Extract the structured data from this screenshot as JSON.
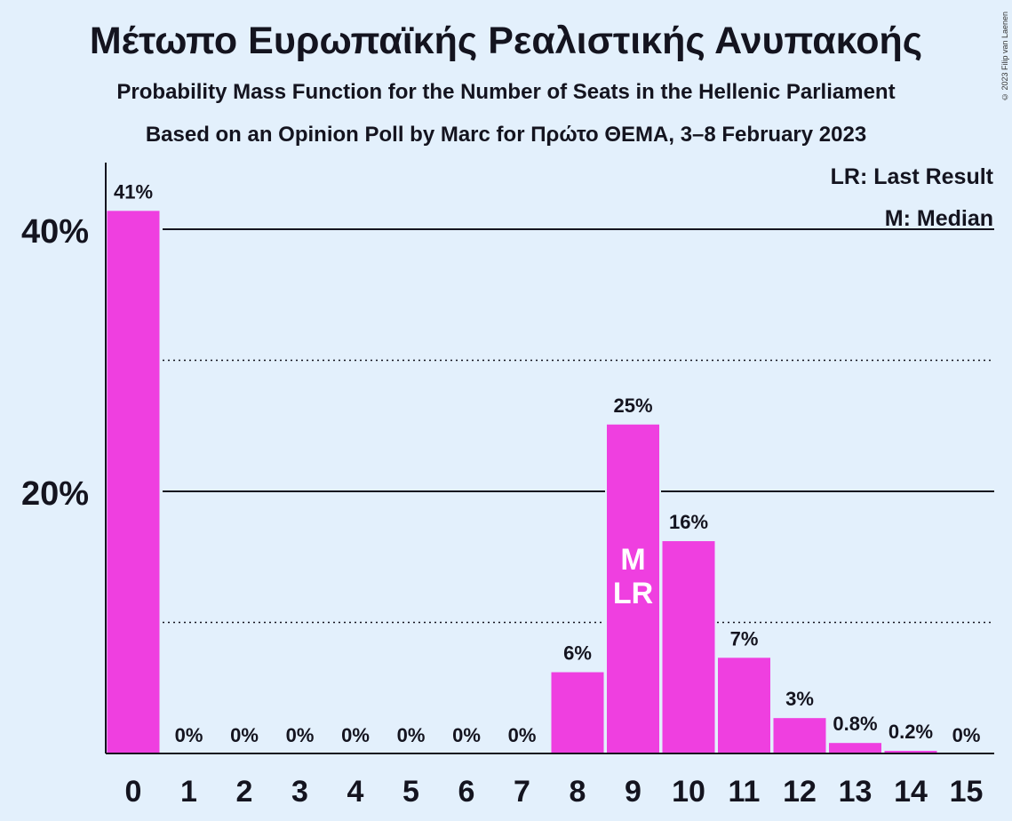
{
  "header": {
    "title": "Μέτωπο Ευρωπαϊκής Ρεαλιστικής Ανυπακοής",
    "subtitle": "Probability Mass Function for the Number of Seats in the Hellenic Parliament",
    "source": "Based on an Opinion Poll by Marc for Πρώτο ΘΕΜΑ, 3–8 February 2023",
    "copyright": "© 2023 Filip van Laenen"
  },
  "legend": {
    "last_result": "LR: Last Result",
    "median": "M: Median"
  },
  "colors": {
    "bar": "#ef3fe0",
    "background": "#e3f0fc",
    "axis": "#14141f"
  },
  "chart_data": {
    "type": "bar",
    "categories": [
      "0",
      "1",
      "2",
      "3",
      "4",
      "5",
      "6",
      "7",
      "8",
      "9",
      "10",
      "11",
      "12",
      "13",
      "14",
      "15"
    ],
    "values": [
      41.4,
      0,
      0,
      0,
      0,
      0,
      0,
      0,
      6.2,
      25.1,
      16.2,
      7.3,
      2.7,
      0.8,
      0.2,
      0
    ],
    "data_labels": [
      "41%",
      "0%",
      "0%",
      "0%",
      "0%",
      "0%",
      "0%",
      "0%",
      "6%",
      "25%",
      "16%",
      "7%",
      "3%",
      "0.8%",
      "0.2%",
      "0%"
    ],
    "y_ticks": [
      {
        "value": 20,
        "label": "20%"
      },
      {
        "value": 40,
        "label": "40%"
      }
    ],
    "minor_gridlines": [
      10,
      30
    ],
    "ylim": [
      0,
      45
    ],
    "median_seat": "9",
    "median_marker": "M",
    "last_result_seat": "9",
    "last_result_marker": "LR",
    "grid": true,
    "legend_position": "top-right"
  }
}
